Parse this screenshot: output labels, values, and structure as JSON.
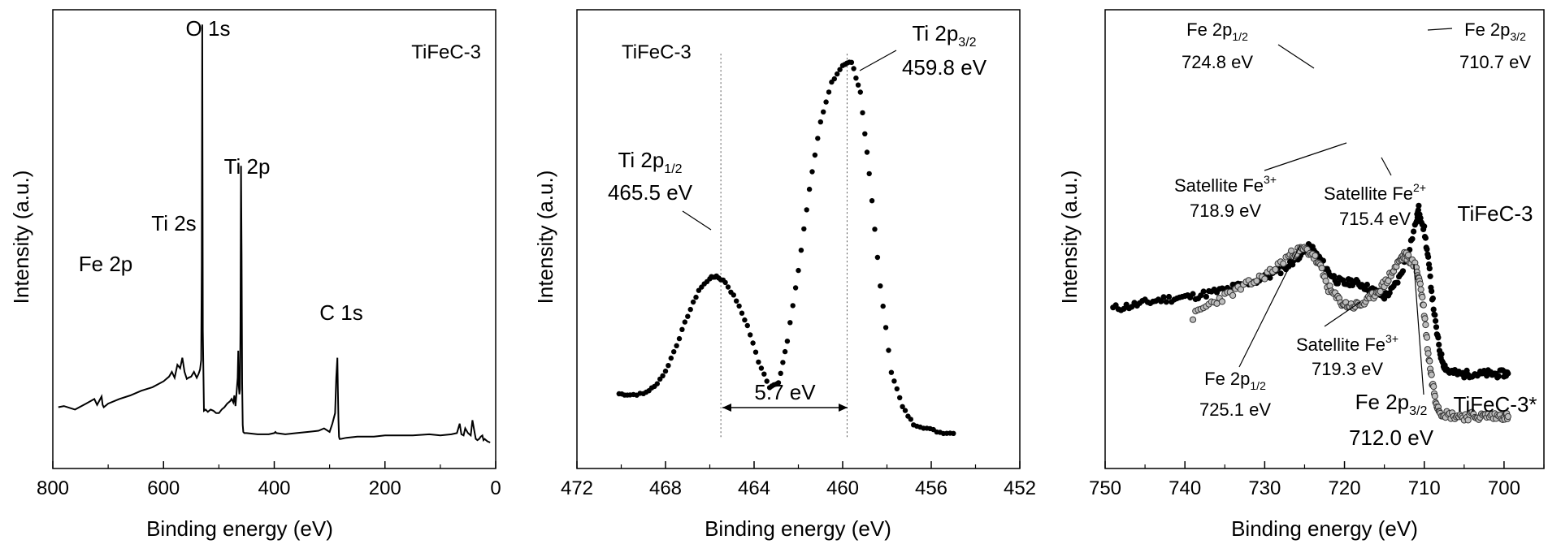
{
  "chart_data": [
    {
      "type": "line",
      "panel": "survey",
      "label": "TiFeC-3",
      "xlabel": "Binding energy (eV)",
      "ylabel": "Intensity (a.u.)",
      "xlim": [
        800,
        0
      ],
      "xticks": [
        "800",
        "600",
        "400",
        "200",
        "0"
      ],
      "annotations": [
        "O 1s",
        "Ti 2p",
        "Ti 2s",
        "Fe 2p",
        "C 1s"
      ],
      "series": [
        {
          "x": [
            790,
            780,
            760,
            740,
            725,
            720,
            712,
            710,
            708,
            700,
            680,
            660,
            640,
            620,
            600,
            590,
            585,
            580,
            575,
            570,
            566,
            562,
            558,
            555,
            550,
            545,
            540,
            537,
            534,
            532,
            531,
            530,
            529,
            527,
            524,
            520,
            515,
            510,
            505,
            500,
            495,
            490,
            485,
            480,
            477,
            474,
            472,
            470,
            468,
            466,
            465,
            464,
            463,
            462,
            461,
            460,
            459,
            458,
            457,
            456,
            454,
            450,
            430,
            420,
            410,
            400,
            398,
            396,
            380,
            360,
            340,
            320,
            310,
            300,
            295,
            290,
            288,
            286,
            285,
            284,
            283,
            282,
            280,
            270,
            250,
            220,
            200,
            170,
            150,
            120,
            100,
            80,
            70,
            65,
            62,
            58,
            55,
            50,
            45,
            42,
            39,
            36,
            33,
            30,
            27,
            24,
            22,
            20,
            15,
            10
          ],
          "y": [
            30,
            31,
            28,
            33,
            37,
            32,
            39,
            32,
            30,
            33,
            37,
            40,
            44,
            47,
            52,
            56,
            60,
            55,
            66,
            63,
            72,
            60,
            54,
            55,
            56,
            60,
            55,
            58,
            62,
            70,
            150,
            355,
            95,
            27,
            28,
            26,
            28,
            27,
            25,
            25,
            28,
            30,
            33,
            35,
            37,
            34,
            40,
            31,
            43,
            55,
            78,
            48,
            41,
            45,
            95,
            235,
            160,
            50,
            15,
            9,
            8,
            8,
            7,
            7,
            7,
            8,
            9,
            8,
            7,
            8,
            9,
            10,
            12,
            9,
            16,
            25,
            55,
            72,
            45,
            20,
            5,
            3,
            3,
            4,
            5,
            5,
            6,
            6,
            6,
            7,
            6,
            7,
            8,
            16,
            7,
            6,
            12,
            8,
            6,
            19,
            11,
            3,
            2,
            3,
            5,
            6,
            2,
            3,
            1,
            0
          ]
        }
      ]
    },
    {
      "type": "scatter",
      "panel": "Ti 2p",
      "label": "TiFeC-3",
      "xlabel": "Binding energy (eV)",
      "ylabel": "Intensity (a.u.)",
      "xlim": [
        472,
        452
      ],
      "xticks": [
        "472",
        "468",
        "464",
        "460",
        "456",
        "452"
      ],
      "annotations": {
        "peak1": {
          "name": "Ti 2p",
          "sub": "1/2",
          "energy": "465.5 eV"
        },
        "peak2": {
          "name": "Ti 2p",
          "sub": "3/2",
          "energy": "459.8 eV"
        },
        "splitting": "5.7 eV"
      },
      "series": [
        {
          "x": [
            470.1,
            469.6,
            469.0,
            468.5,
            468.0,
            467.5,
            467.0,
            466.5,
            466.0,
            465.7,
            465.3,
            464.8,
            464.3,
            463.8,
            463.3,
            462.9,
            462.5,
            462.0,
            461.5,
            461.0,
            460.5,
            460.0,
            459.6,
            459.2,
            458.8,
            458.3,
            457.8,
            457.3,
            456.8,
            456.2,
            455.6,
            455.0
          ],
          "y": [
            48,
            47,
            48,
            55,
            70,
            96,
            125,
            150,
            162,
            164,
            158,
            140,
            115,
            80,
            55,
            58,
            100,
            170,
            250,
            315,
            355,
            372,
            375,
            345,
            265,
            155,
            70,
            35,
            18,
            14,
            10,
            9
          ]
        }
      ]
    },
    {
      "type": "scatter",
      "panel": "Fe 2p",
      "xlabel": "Binding energy (eV)",
      "ylabel": "Intensity (a.u.)",
      "xlim": [
        750,
        695
      ],
      "xticks": [
        "750",
        "740",
        "730",
        "720",
        "710",
        "700"
      ],
      "annotations": {
        "top_p12": {
          "name": "Fe 2p",
          "sub": "1/2",
          "energy": "724.8 eV"
        },
        "top_p32": {
          "name": "Fe 2p",
          "sub": "3/2",
          "energy": "710.7 eV"
        },
        "top_sat3": {
          "name": "Satellite Fe",
          "sup": "3+",
          "energy": "718.9 eV"
        },
        "top_sat2": {
          "name": "Satellite Fe",
          "sup": "2+",
          "energy": "715.4 eV"
        },
        "bot_p12": {
          "name": "Fe 2p",
          "sub": "1/2",
          "energy": "725.1 eV"
        },
        "bot_p32": {
          "name": "Fe 2p",
          "sub": "3/2",
          "energy": "712.0 eV"
        },
        "bot_sat3": {
          "name": "Satellite Fe",
          "sup": "3+",
          "energy": "719.3 eV"
        }
      },
      "series": [
        {
          "name": "TiFeC-3",
          "x": [
            749,
            747,
            745,
            743,
            741,
            739,
            737,
            735,
            733,
            731,
            729,
            727,
            726,
            725,
            724.5,
            724,
            723,
            722,
            721,
            720,
            719,
            718,
            717,
            716,
            715,
            714,
            713,
            712,
            711,
            710.7,
            710,
            709.5,
            709,
            708.5,
            708,
            707.5,
            707,
            706,
            705,
            704,
            703,
            702,
            701,
            700,
            699.5
          ],
          "y": [
            165,
            168,
            172,
            176,
            178,
            180,
            184,
            188,
            194,
            199,
            207,
            218,
            228,
            236,
            240,
            238,
            225,
            210,
            200,
            196,
            198,
            195,
            190,
            185,
            180,
            188,
            205,
            235,
            272,
            288,
            262,
            225,
            180,
            140,
            110,
            95,
            88,
            85,
            84,
            85,
            84,
            85,
            84,
            85,
            85
          ]
        },
        {
          "name": "TiFeC-3*",
          "x": [
            739,
            737,
            735,
            733,
            731,
            729,
            727,
            726,
            725,
            724,
            723,
            722,
            721,
            720,
            719,
            718,
            717,
            716,
            715,
            714,
            713,
            712.5,
            712,
            711,
            710.5,
            710,
            709.5,
            709,
            708.5,
            708,
            707,
            706,
            705,
            704,
            703,
            702,
            701,
            700,
            699.5
          ],
          "y": [
            155,
            170,
            180,
            190,
            200,
            212,
            230,
            235,
            238,
            232,
            215,
            190,
            178,
            170,
            168,
            170,
            175,
            185,
            195,
            210,
            225,
            230,
            228,
            215,
            195,
            160,
            110,
            75,
            50,
            38,
            34,
            33,
            32,
            33,
            32,
            33,
            32,
            33,
            32
          ]
        }
      ]
    }
  ]
}
